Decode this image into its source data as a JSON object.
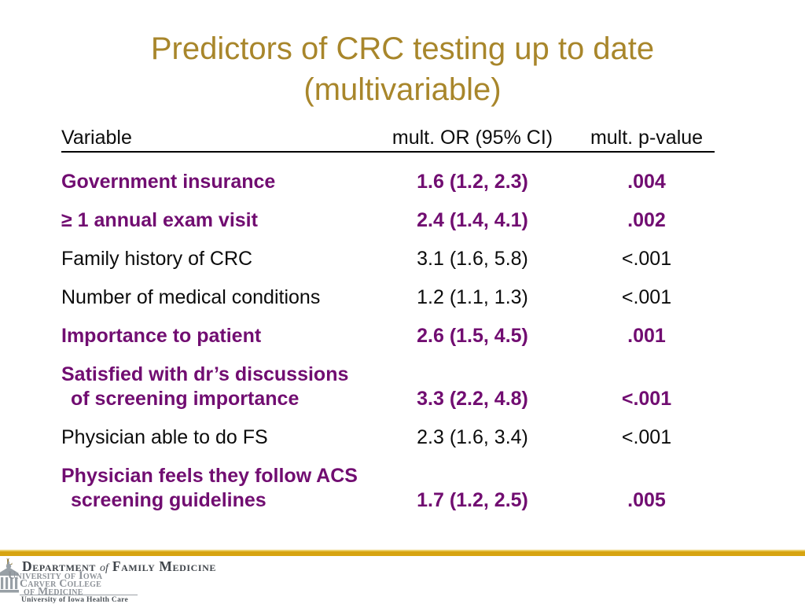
{
  "colors": {
    "title_gold": "#a8862b",
    "accent_purple": "#710d71",
    "bar_gold": "#d7a411",
    "ink_black": "#0c0c0c",
    "logo_gray": "#8d9298",
    "dept_gray": "#3f444a"
  },
  "title": {
    "line1": "Predictors of CRC testing up to date",
    "line2": "(multivariable)"
  },
  "table": {
    "headers": {
      "variable": "Variable",
      "or": "mult. OR (95% CI)",
      "p": "mult. p-value"
    },
    "rows": [
      {
        "variable": [
          "Government insurance"
        ],
        "or": "1.6 (1.2, 2.3)",
        "p": ".004",
        "highlight": true
      },
      {
        "variable": [
          "≥ 1 annual exam visit"
        ],
        "or": "2.4 (1.4, 4.1)",
        "p": ".002",
        "highlight": true
      },
      {
        "variable": [
          "Family history of CRC"
        ],
        "or": "3.1 (1.6, 5.8)",
        "p": "<.001",
        "highlight": false
      },
      {
        "variable": [
          "Number of medical conditions"
        ],
        "or": "1.2 (1.1, 1.3)",
        "p": "<.001",
        "highlight": false
      },
      {
        "variable": [
          "Importance to patient"
        ],
        "or": "2.6 (1.5, 4.5)",
        "p": ".001",
        "highlight": true
      },
      {
        "variable": [
          "Satisfied with dr’s discussions",
          "of screening importance"
        ],
        "or": "3.3 (2.2, 4.8)",
        "p": "<.001",
        "highlight": true
      },
      {
        "variable": [
          "Physician able to do FS"
        ],
        "or": "2.3 (1.6, 3.4)",
        "p": "<.001",
        "highlight": false
      },
      {
        "variable": [
          "Physician feels they follow ACS",
          "screening guidelines"
        ],
        "or": "1.7 (1.2, 2.5)",
        "p": ".005",
        "highlight": true
      }
    ]
  },
  "footer": {
    "building_icon": "old-capitol-building-icon",
    "l_mark": "L",
    "department": {
      "word1": "Department",
      "of": "of",
      "word2": "Family Medicine"
    },
    "university": {
      "line1": "University of Iowa",
      "line2": "Carver College",
      "line3": "of Medicine"
    },
    "healthcare": "University of Iowa Health Care"
  }
}
